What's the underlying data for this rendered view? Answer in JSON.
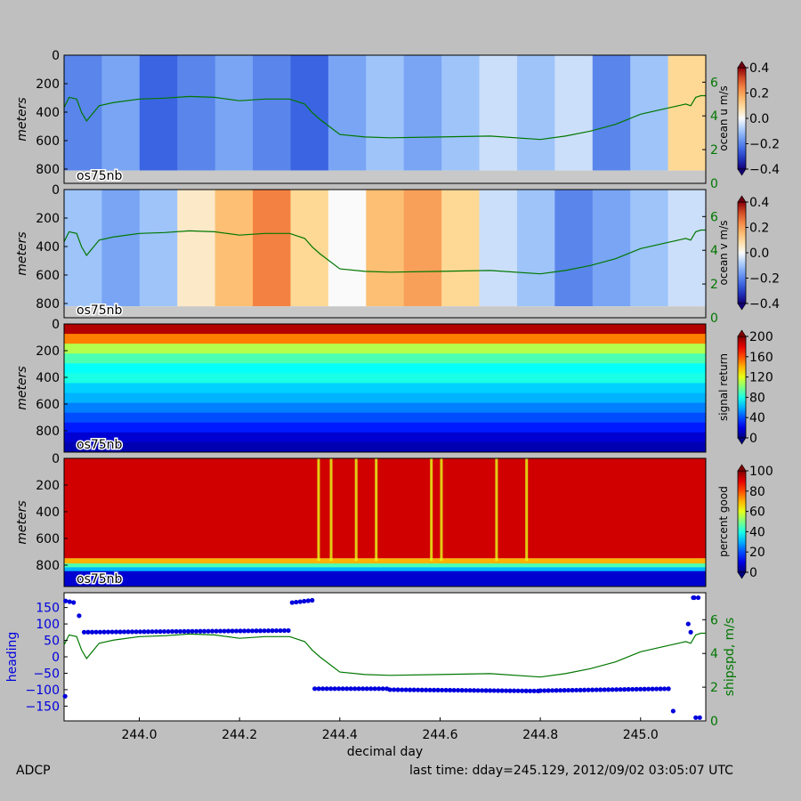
{
  "figure": {
    "footer_left": "ADCP",
    "footer_right": "last time: dday=245.129,  2012/09/02 03:05:07 UTC",
    "instrument_label": "os75nb"
  },
  "colors": {
    "background": "#bfbfbf",
    "shipspd_line": "#007700",
    "heading_points": "#0000dd",
    "bottom_mask": "#c8c8c8"
  },
  "chart_data": [
    {
      "type": "heatmap",
      "panel": 1,
      "ylabel": "meters",
      "y_ticks": [
        "0",
        "200",
        "400",
        "600",
        "800"
      ],
      "ylim": [
        0,
        900
      ],
      "y_inverted": true,
      "xlim": [
        243.85,
        245.13
      ],
      "colorbar": {
        "label": "ocean u m/s",
        "ticks": [
          "0.4",
          "0.2",
          "0.0",
          "−0.2",
          "−0.4"
        ],
        "range": [
          -0.4,
          0.4
        ],
        "colormap": "bwr"
      },
      "right_axis": {
        "label": "",
        "ticks": [
          "0",
          "2",
          "4",
          "6"
        ],
        "range": [
          0,
          7.6
        ],
        "color": "#007700"
      },
      "colormap_values": [
        -0.2,
        -0.15,
        -0.25,
        -0.2,
        -0.15,
        -0.2,
        -0.25,
        -0.15,
        -0.1,
        -0.15,
        -0.1,
        -0.05,
        -0.1,
        -0.05,
        -0.2,
        -0.1,
        0.1
      ],
      "mask_depth_m": 810,
      "label": "os75nb"
    },
    {
      "type": "heatmap",
      "panel": 2,
      "ylabel": "meters",
      "y_ticks": [
        "0",
        "200",
        "400",
        "600",
        "800"
      ],
      "ylim": [
        0,
        900
      ],
      "y_inverted": true,
      "xlim": [
        243.85,
        245.13
      ],
      "colorbar": {
        "label": "ocean v m/s",
        "ticks": [
          "0.4",
          "0.2",
          "0.0",
          "−0.2",
          "−0.4"
        ],
        "range": [
          -0.4,
          0.4
        ],
        "colormap": "bwr"
      },
      "right_axis": {
        "label": "",
        "ticks": [
          "0",
          "2",
          "4",
          "6"
        ],
        "range": [
          0,
          7.6
        ],
        "color": "#007700"
      },
      "colormap_values": [
        -0.1,
        -0.15,
        -0.1,
        0.05,
        0.15,
        0.25,
        0.1,
        0.0,
        0.15,
        0.2,
        0.1,
        -0.05,
        -0.1,
        -0.2,
        -0.15,
        -0.1,
        -0.05
      ],
      "mask_depth_m": 820,
      "label": "os75nb"
    },
    {
      "type": "heatmap",
      "panel": 3,
      "ylabel": "meters",
      "y_ticks": [
        "0",
        "200",
        "400",
        "600",
        "800"
      ],
      "ylim": [
        0,
        960
      ],
      "y_inverted": true,
      "xlim": [
        243.85,
        245.13
      ],
      "colorbar": {
        "label": "signal return",
        "ticks": [
          "200",
          "160",
          "120",
          "80",
          "40",
          "0"
        ],
        "range": [
          0,
          200
        ],
        "colormap": "jet"
      },
      "label": "os75nb"
    },
    {
      "type": "heatmap",
      "panel": 4,
      "ylabel": "meters",
      "y_ticks": [
        "0",
        "200",
        "400",
        "600",
        "800"
      ],
      "ylim": [
        0,
        960
      ],
      "y_inverted": true,
      "xlim": [
        243.85,
        245.13
      ],
      "colorbar": {
        "label": "percent good",
        "ticks": [
          "100",
          "80",
          "60",
          "40",
          "20",
          "0"
        ],
        "range": [
          0,
          100
        ],
        "colormap": "jet"
      },
      "label": "os75nb"
    },
    {
      "type": "scatter",
      "panel": 5,
      "xlabel": "decimal day",
      "ylabel": "heading",
      "ylabel_right": "shipspd, m/s",
      "x_ticks": [
        "244.0",
        "244.2",
        "244.4",
        "244.6",
        "244.8",
        "245.0"
      ],
      "x_tick_values": [
        244.0,
        244.2,
        244.4,
        244.6,
        244.8,
        245.0
      ],
      "xlim": [
        243.85,
        245.13
      ],
      "y_ticks": [
        "150",
        "100",
        "50",
        "0",
        "−50",
        "−100",
        "−150"
      ],
      "y_tick_values": [
        150,
        100,
        50,
        0,
        -50,
        -100,
        -150
      ],
      "ylim": [
        -195,
        195
      ],
      "right_ticks": [
        "6",
        "4",
        "2",
        "0"
      ],
      "right_tick_values": [
        6,
        4,
        2,
        0
      ],
      "right_ylim": [
        0,
        7.6
      ]
    }
  ],
  "shipspd": {
    "x": [
      243.85,
      243.86,
      243.875,
      243.885,
      243.895,
      243.92,
      243.95,
      244.0,
      244.05,
      244.1,
      244.15,
      244.2,
      244.25,
      244.3,
      244.31,
      244.33,
      244.345,
      244.36,
      244.4,
      244.45,
      244.5,
      244.6,
      244.7,
      244.8,
      244.85,
      244.9,
      244.95,
      245.0,
      245.06,
      245.09,
      245.1,
      245.11,
      245.12,
      245.13
    ],
    "y": [
      4.5,
      5.1,
      5.0,
      4.2,
      3.7,
      4.6,
      4.8,
      5.0,
      5.05,
      5.15,
      5.1,
      4.9,
      5.0,
      5.0,
      4.9,
      4.7,
      4.2,
      3.8,
      2.9,
      2.75,
      2.7,
      2.75,
      2.8,
      2.6,
      2.8,
      3.1,
      3.5,
      4.1,
      4.5,
      4.7,
      4.6,
      5.1,
      5.2,
      5.2
    ]
  },
  "heading_segments": [
    {
      "x0": 243.853,
      "x1": 243.87,
      "y0": 170,
      "y1": 165
    },
    {
      "x0": 243.89,
      "x1": 244.3,
      "y0": 75,
      "y1": 80
    },
    {
      "x0": 244.305,
      "x1": 244.345,
      "y0": 165,
      "y1": 172
    },
    {
      "x0": 244.35,
      "x1": 244.5,
      "y0": -97,
      "y1": -97
    },
    {
      "x0": 244.5,
      "x1": 244.8,
      "y0": -100,
      "y1": -104
    },
    {
      "x0": 244.8,
      "x1": 245.06,
      "y0": -103,
      "y1": -97
    },
    {
      "x0": 245.107,
      "x1": 245.118,
      "y0": 180,
      "y1": 180
    },
    {
      "x0": 245.11,
      "x1": 245.125,
      "y0": -185,
      "y1": -185
    }
  ],
  "heading_outliers": [
    {
      "x": 243.852,
      "y": -120
    },
    {
      "x": 243.88,
      "y": 125
    },
    {
      "x": 245.065,
      "y": -165
    },
    {
      "x": 245.095,
      "y": 100
    },
    {
      "x": 245.1,
      "y": 75
    },
    {
      "x": 245.105,
      "y": 180
    }
  ]
}
